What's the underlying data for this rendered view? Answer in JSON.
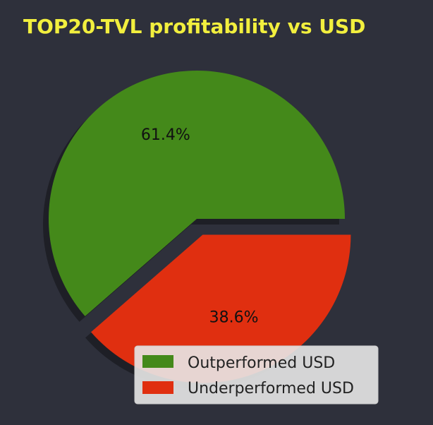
{
  "chart_data": {
    "type": "pie",
    "title": "TOP20-TVL profitability vs USD",
    "title_color": "#f2ef3e",
    "background": "#2e303b",
    "categories": [
      "Outperformed USD",
      "Underperformed USD"
    ],
    "values": [
      61.4,
      38.6
    ],
    "value_labels": [
      "61.4%",
      "38.6%"
    ],
    "colors": [
      "#44891a",
      "#e02f10"
    ],
    "explode": [
      0,
      1
    ],
    "shadow": true,
    "legend": {
      "placement": "lower-right",
      "entries": [
        "Outperformed USD",
        "Underperformed USD"
      ]
    }
  }
}
